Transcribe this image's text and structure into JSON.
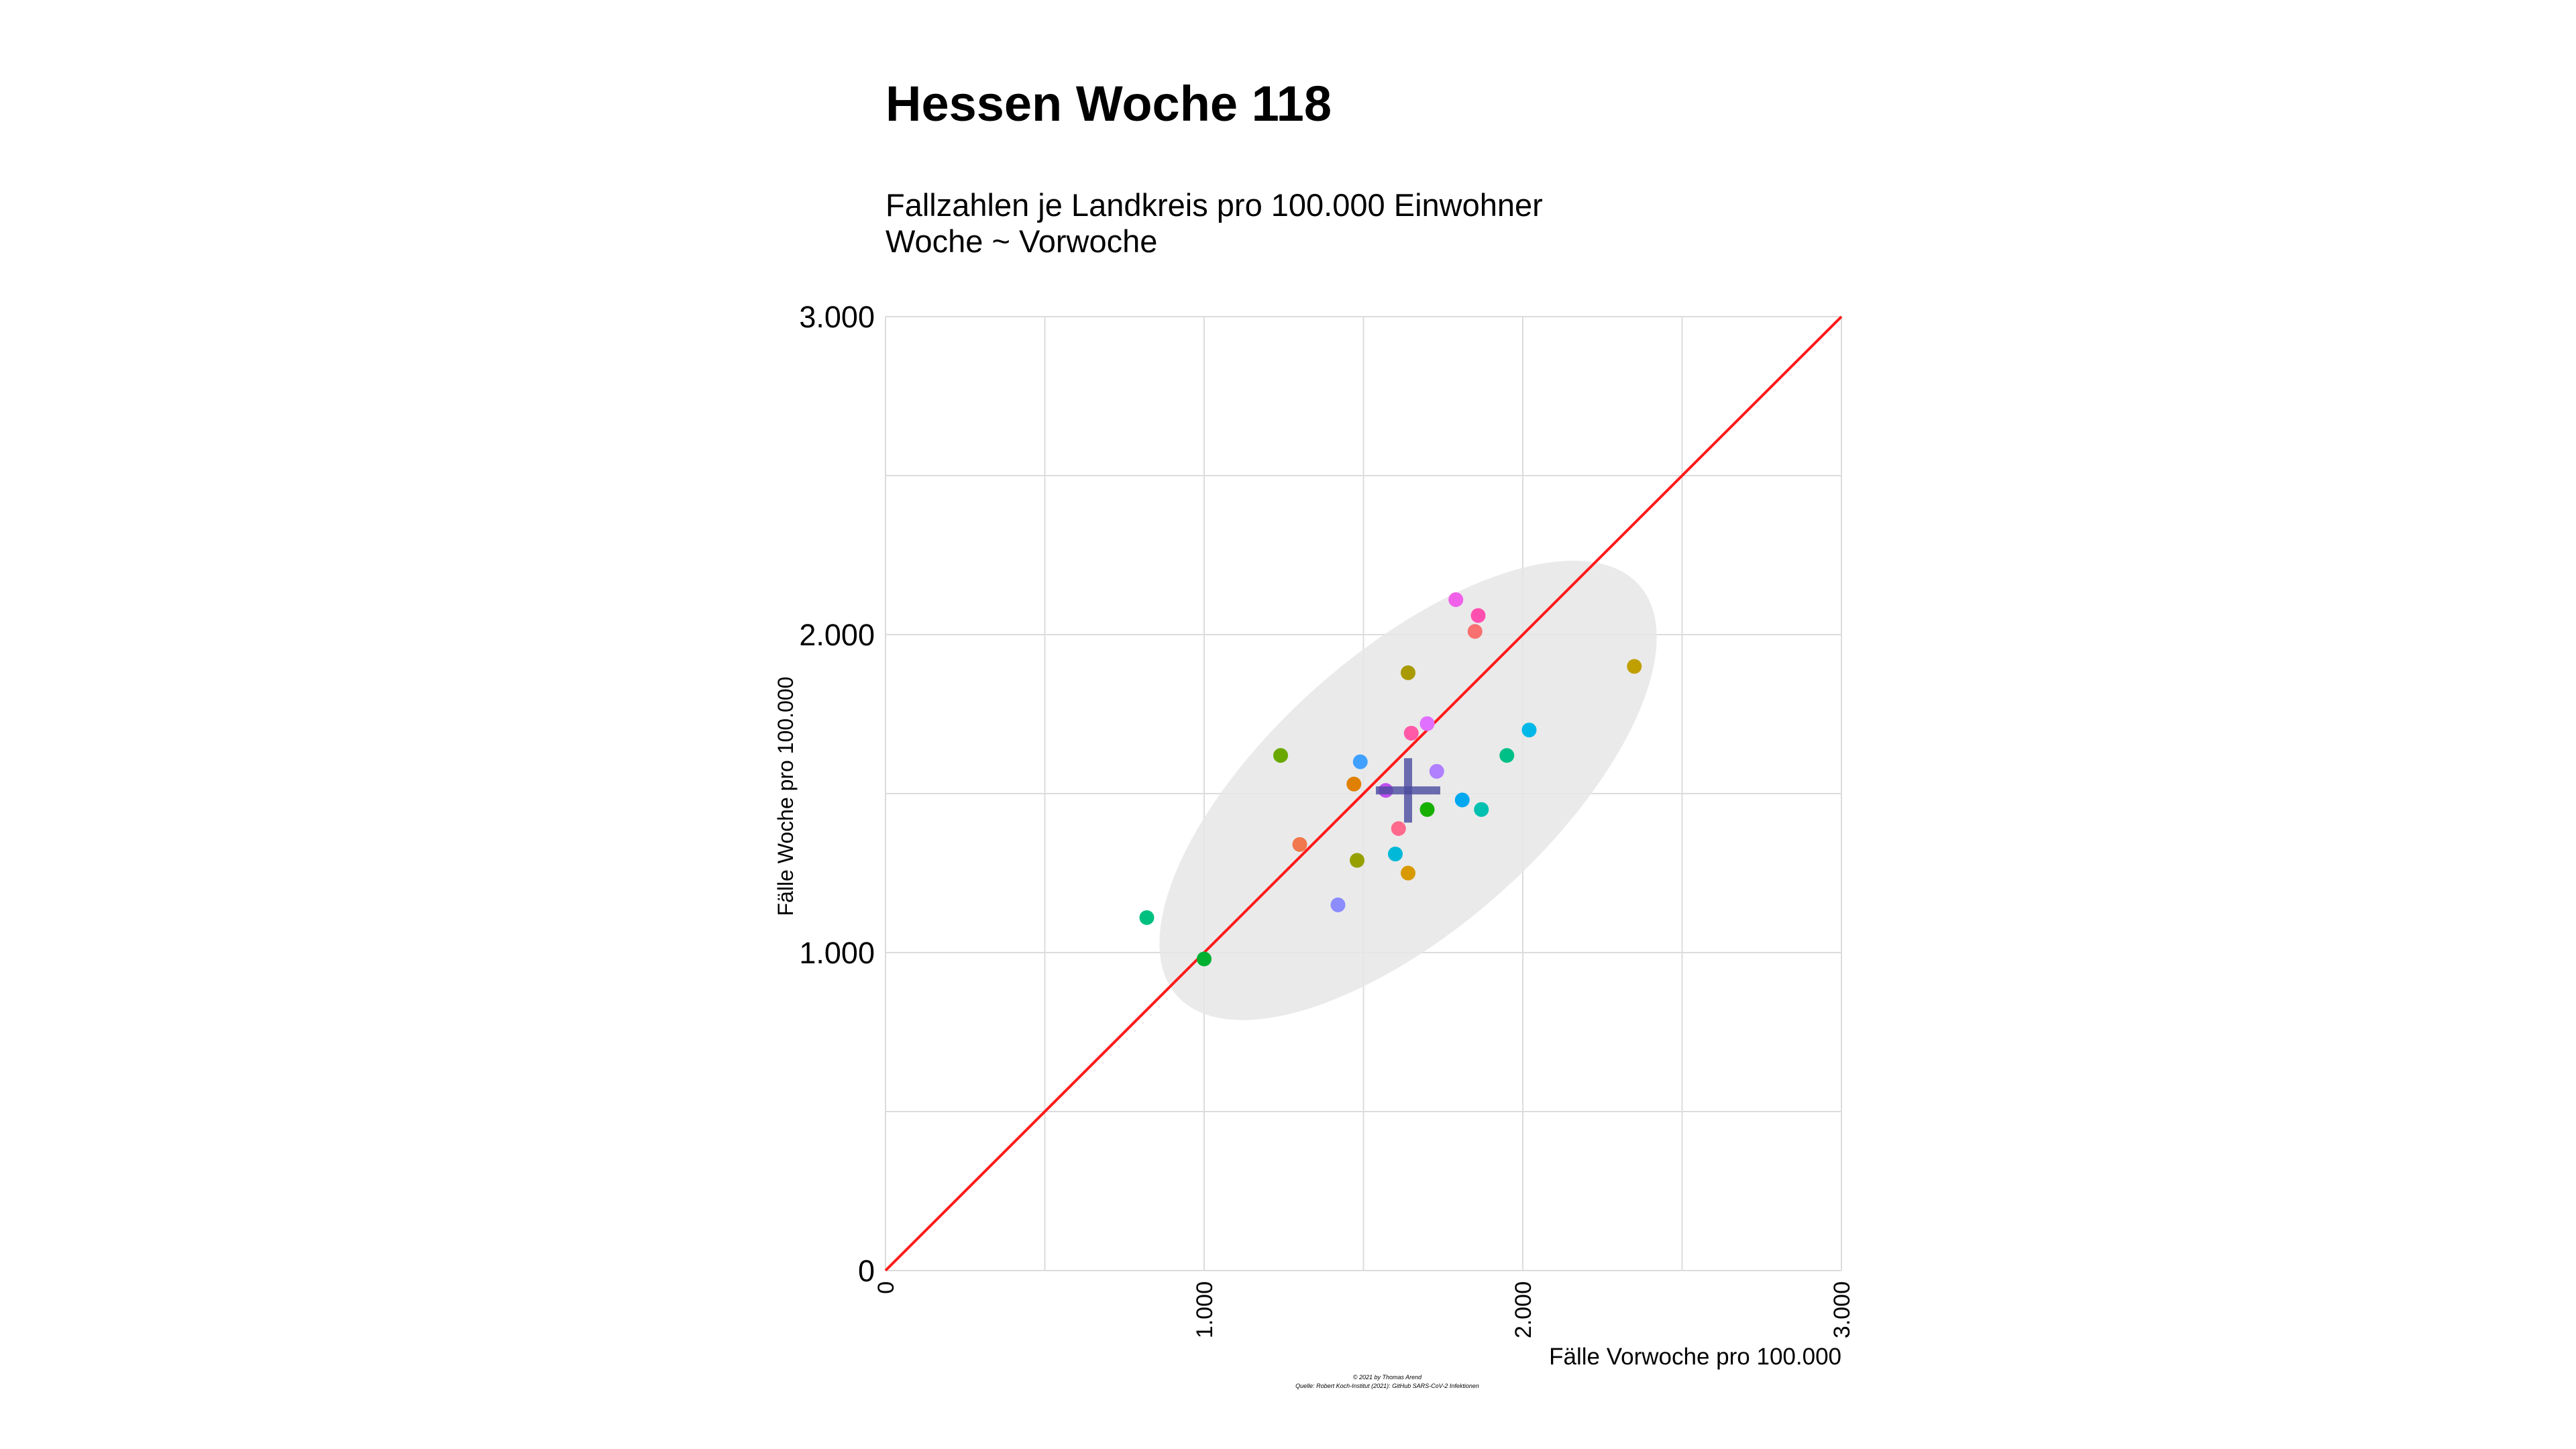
{
  "chart_data": {
    "type": "scatter",
    "title": "Hessen Woche 118",
    "subtitle_lines": [
      "Fallzahlen je Landkreis pro 100.000 Einwohner",
      "Woche ~ Vorwoche"
    ],
    "xlabel": "Fälle Vorwoche pro 100.000",
    "ylabel": "Fälle Woche pro 100.000",
    "caption_lines": [
      "© 2021 by Thomas Arend",
      "Quelle: Robert Koch-Institut (2021): GitHub SARS-CoV-2 Infektionen"
    ],
    "xlim": [
      0,
      3000
    ],
    "ylim": [
      0,
      3000
    ],
    "x_ticks": [
      0,
      1000,
      2000,
      3000
    ],
    "x_tick_labels": [
      "0",
      "1.000",
      "2.000",
      "3.000"
    ],
    "y_ticks": [
      0,
      1000,
      2000,
      3000
    ],
    "y_tick_labels": [
      "0",
      "1.000",
      "2.000",
      "3.000"
    ],
    "grid": true,
    "reference_line": {
      "type": "identity",
      "from": [
        0,
        0
      ],
      "to": [
        3000,
        3000
      ],
      "color": "#ff1a1a"
    },
    "mean_marker": {
      "x": 1640,
      "y": 1510,
      "color": "#4b4ba0"
    },
    "confidence_ellipse": {
      "center": [
        1640,
        1510
      ],
      "fill": "#e6e6e6"
    },
    "points": [
      {
        "x": 820,
        "y": 1110,
        "color": "#00c080"
      },
      {
        "x": 1000,
        "y": 980,
        "color": "#00b030"
      },
      {
        "x": 1240,
        "y": 1620,
        "color": "#6aa800"
      },
      {
        "x": 1300,
        "y": 1340,
        "color": "#f0784c"
      },
      {
        "x": 1420,
        "y": 1150,
        "color": "#8c8cff"
      },
      {
        "x": 1470,
        "y": 1530,
        "color": "#e08000"
      },
      {
        "x": 1480,
        "y": 1290,
        "color": "#96a000"
      },
      {
        "x": 1490,
        "y": 1600,
        "color": "#3fa0ff"
      },
      {
        "x": 1570,
        "y": 1510,
        "color": "#c050f0"
      },
      {
        "x": 1600,
        "y": 1310,
        "color": "#00b8d8"
      },
      {
        "x": 1610,
        "y": 1390,
        "color": "#ff6a8c"
      },
      {
        "x": 1640,
        "y": 1880,
        "color": "#a89a00"
      },
      {
        "x": 1640,
        "y": 1250,
        "color": "#d89a00"
      },
      {
        "x": 1650,
        "y": 1690,
        "color": "#ff5aa8"
      },
      {
        "x": 1700,
        "y": 1450,
        "color": "#18b000"
      },
      {
        "x": 1700,
        "y": 1720,
        "color": "#e070ff"
      },
      {
        "x": 1730,
        "y": 1570,
        "color": "#b080ff"
      },
      {
        "x": 1790,
        "y": 2110,
        "color": "#f060e8"
      },
      {
        "x": 1810,
        "y": 1480,
        "color": "#00a8f0"
      },
      {
        "x": 1850,
        "y": 2010,
        "color": "#f87070"
      },
      {
        "x": 1860,
        "y": 2060,
        "color": "#ff50b0"
      },
      {
        "x": 1870,
        "y": 1450,
        "color": "#00c0b0"
      },
      {
        "x": 1950,
        "y": 1620,
        "color": "#00c088"
      },
      {
        "x": 2020,
        "y": 1700,
        "color": "#00b8e8"
      },
      {
        "x": 2350,
        "y": 1900,
        "color": "#c0a000"
      }
    ]
  }
}
